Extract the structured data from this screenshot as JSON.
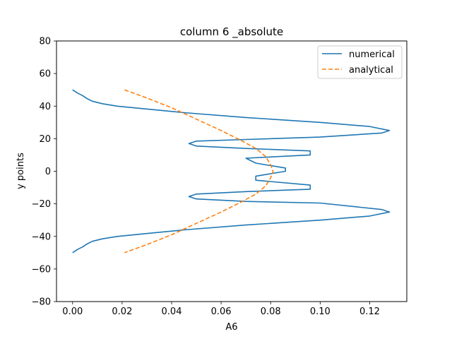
{
  "chart_data": {
    "type": "line",
    "title": "column 6 _absolute",
    "xlabel": "A6",
    "ylabel": "y points",
    "xlim": [
      -0.0065,
      0.135
    ],
    "ylim": [
      -80,
      80
    ],
    "xticks": [
      0.0,
      0.02,
      0.04,
      0.06,
      0.08,
      0.1,
      0.12
    ],
    "xtick_labels": [
      "0.00",
      "0.02",
      "0.04",
      "0.06",
      "0.08",
      "0.10",
      "0.12"
    ],
    "yticks": [
      -80,
      -60,
      -40,
      -20,
      0,
      20,
      40,
      60,
      80
    ],
    "ytick_labels": [
      "−80",
      "−60",
      "−40",
      "−20",
      "0",
      "20",
      "40",
      "60",
      "80"
    ],
    "grid": false,
    "legend_position": "top-right",
    "series": [
      {
        "name": "numerical",
        "color": "#1f77b4",
        "style": "solid",
        "x": [
          0.0,
          0.002,
          0.004,
          0.006,
          0.008,
          0.012,
          0.018,
          0.028,
          0.045,
          0.07,
          0.1,
          0.12,
          0.128,
          0.125,
          0.1,
          0.07,
          0.05,
          0.047,
          0.05,
          0.07,
          0.096,
          0.096,
          0.07,
          0.074,
          0.086,
          0.086,
          0.074,
          0.074,
          0.096,
          0.096,
          0.07,
          0.05,
          0.047,
          0.05,
          0.07,
          0.1,
          0.125,
          0.128,
          0.12,
          0.1,
          0.07,
          0.045,
          0.028,
          0.018,
          0.012,
          0.008,
          0.006,
          0.004,
          0.002,
          0.0
        ],
        "y": [
          50,
          48,
          46.5,
          44.5,
          43,
          41.5,
          40,
          38.5,
          36,
          33,
          30,
          27.5,
          25,
          23.5,
          21,
          19.5,
          18.5,
          17,
          15.5,
          14,
          12.5,
          10,
          8,
          5,
          2,
          0,
          -3,
          -5.5,
          -8.5,
          -11,
          -12.5,
          -14,
          -15.5,
          -17,
          -18.5,
          -19.5,
          -23.5,
          -25,
          -27.5,
          -30,
          -33,
          -36,
          -38.5,
          -40,
          -41.5,
          -43,
          -44.5,
          -46.5,
          -48,
          -50
        ]
      },
      {
        "name": "analytical",
        "color": "#ff7f0e",
        "style": "dashed",
        "x": [
          0.021,
          0.03,
          0.04,
          0.05,
          0.06,
          0.068,
          0.074,
          0.078,
          0.08,
          0.081,
          0.08,
          0.078,
          0.074,
          0.068,
          0.06,
          0.05,
          0.04,
          0.03,
          0.021
        ],
        "y": [
          50,
          45,
          39,
          32,
          25,
          19,
          14,
          9,
          4,
          0,
          -4,
          -9,
          -14,
          -19,
          -25,
          -32,
          -39,
          -45,
          -50
        ]
      }
    ]
  }
}
